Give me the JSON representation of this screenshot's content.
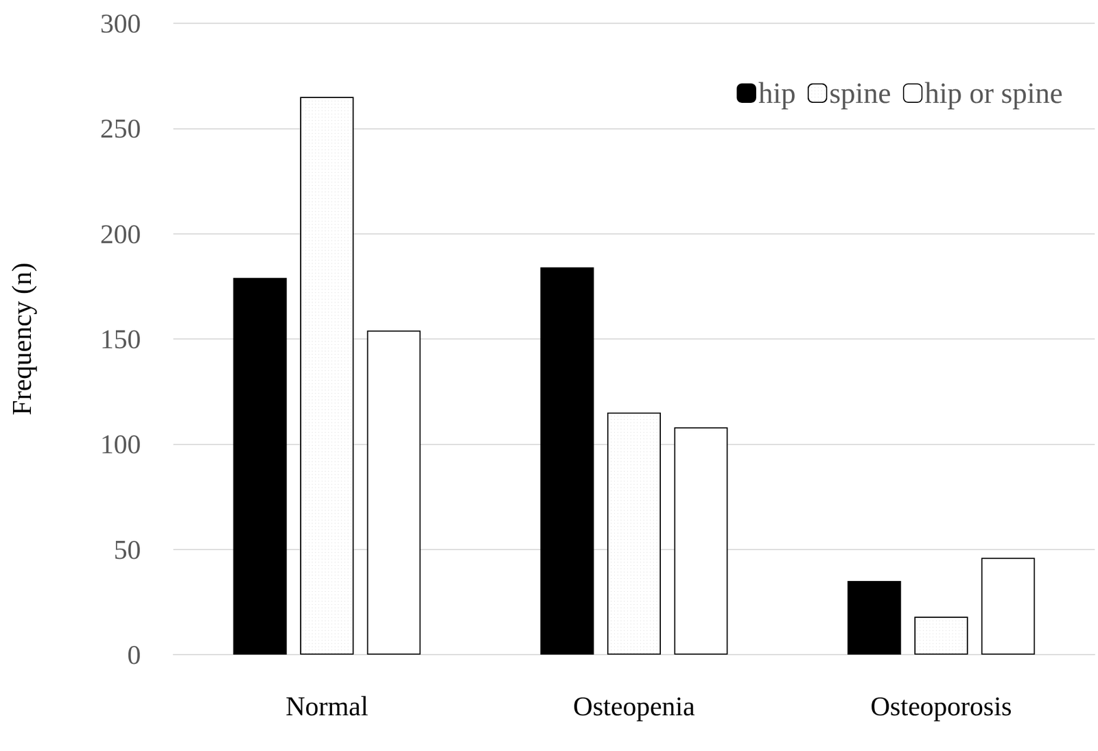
{
  "chart_data": {
    "type": "bar",
    "y_label": "Frequency (n)",
    "categories": [
      "Normal",
      "Osteopenia",
      "Osteoporosis"
    ],
    "series": [
      {
        "name": "hip",
        "color": "#000000",
        "values": [
          179,
          184,
          35
        ]
      },
      {
        "name": "spine",
        "color": "#ffffff",
        "values": [
          265,
          115,
          18
        ]
      },
      {
        "name": "hip or spine",
        "color": "#ffffff",
        "values": [
          154,
          108,
          46
        ]
      }
    ],
    "ylim": [
      0,
      300
    ],
    "yticks": [
      0,
      50,
      100,
      150,
      200,
      250,
      300
    ],
    "grid": true,
    "legend": "upper right"
  }
}
